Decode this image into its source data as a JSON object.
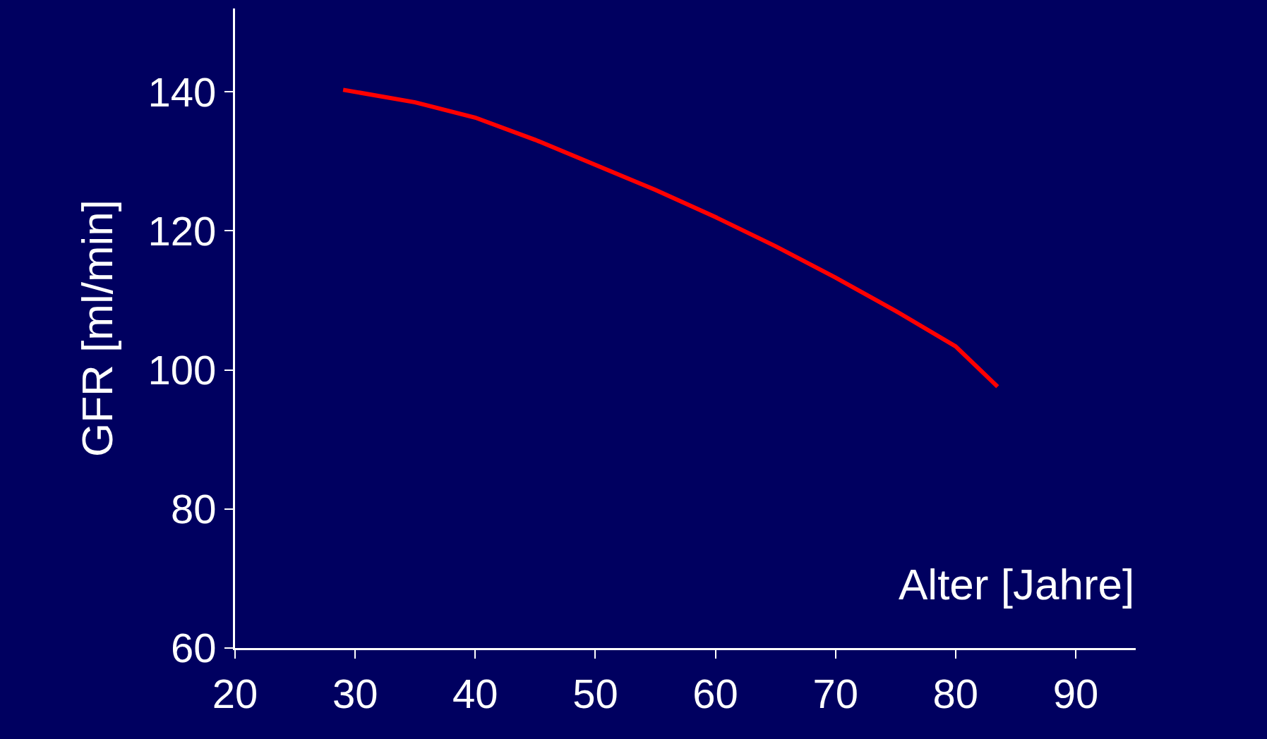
{
  "chart_data": {
    "type": "line",
    "xlabel": "Alter [Jahre]",
    "ylabel": "GFR [ml/min]",
    "x": [
      29,
      35,
      40,
      45,
      50,
      55,
      60,
      65,
      70,
      75,
      80,
      83.5
    ],
    "series": [
      {
        "color": "#ff0000",
        "values": [
          140.3,
          138.5,
          136.3,
          133.1,
          129.5,
          125.9,
          122.0,
          117.8,
          113.3,
          108.5,
          103.4,
          97.6
        ]
      }
    ],
    "xlim": [
      20,
      95
    ],
    "ylim": [
      60,
      152
    ],
    "xticks": [
      20,
      30,
      40,
      50,
      60,
      70,
      80,
      90
    ],
    "yticks": [
      60,
      80,
      100,
      120,
      140
    ],
    "marker": "none",
    "line_style": "solid"
  }
}
